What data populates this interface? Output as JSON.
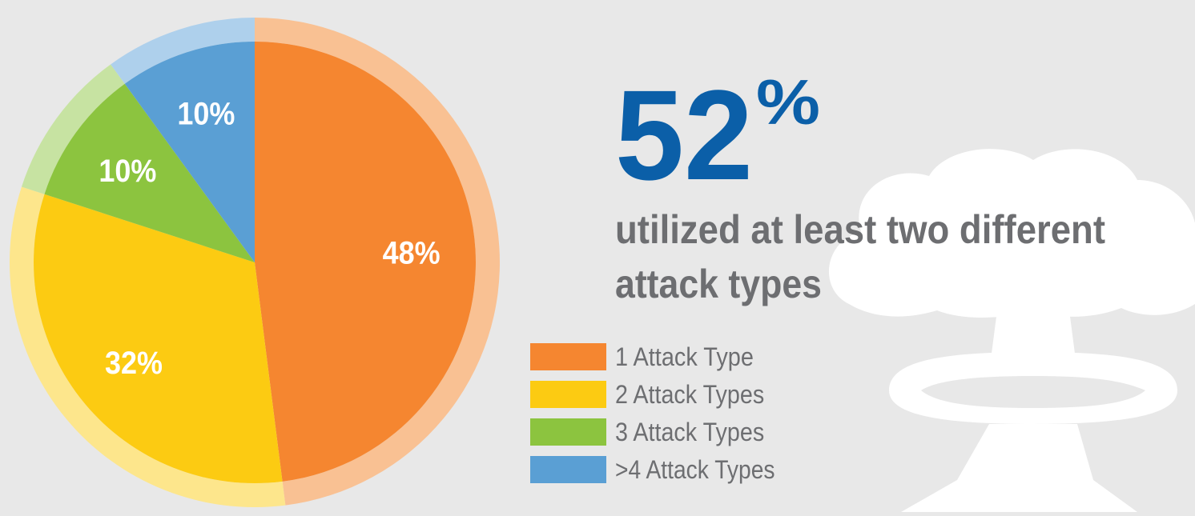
{
  "chart_data": {
    "type": "pie",
    "categories": [
      "1 Attack Type",
      "2 Attack Types",
      "3 Attack Types",
      ">4 Attack Types"
    ],
    "values": [
      48,
      32,
      10,
      10
    ],
    "value_labels": [
      "48%",
      "32%",
      "10%",
      "10%"
    ],
    "colors": [
      "#f58630",
      "#fccb12",
      "#8cc43f",
      "#5a9fd4"
    ],
    "ring_colors": [
      "#f9c193",
      "#fde68c",
      "#c7e3a2",
      "#aed0ec"
    ],
    "stat_number": "52",
    "stat_unit": "%",
    "subtitle": [
      "utilized at least two different",
      "attack types"
    ]
  }
}
